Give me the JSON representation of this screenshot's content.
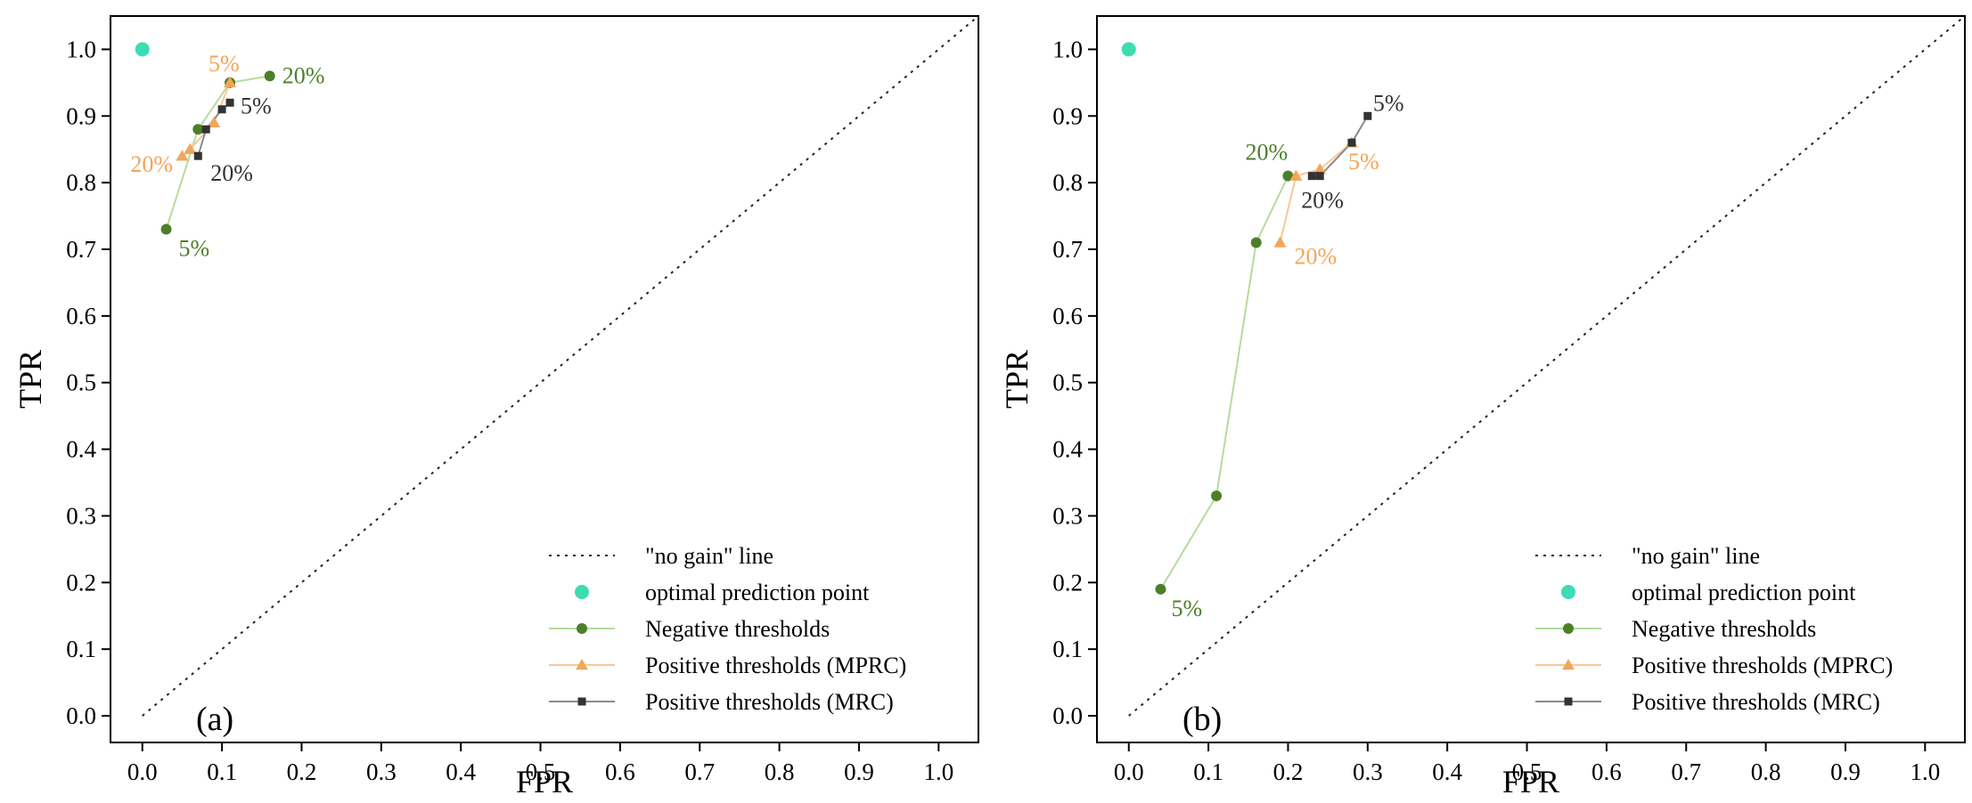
{
  "chart_data": [
    {
      "type": "line",
      "panel_label": "(a)",
      "xlabel": "FPR",
      "ylabel": "TPR",
      "xlim": [
        -0.04,
        1.05
      ],
      "ylim": [
        -0.04,
        1.05
      ],
      "xticks": [
        "0.0",
        "0.1",
        "0.2",
        "0.3",
        "0.4",
        "0.5",
        "0.6",
        "0.7",
        "0.8",
        "0.9",
        "1.0"
      ],
      "yticks": [
        "0.0",
        "0.1",
        "0.2",
        "0.3",
        "0.4",
        "0.5",
        "0.6",
        "0.7",
        "0.8",
        "0.9",
        "1.0"
      ],
      "grid": false,
      "legend_position": "bottom-right",
      "legend": [
        {
          "label": "\"no gain\" line",
          "key": "nogain"
        },
        {
          "label": "optimal prediction point",
          "key": "optimal"
        },
        {
          "label": "Negative thresholds",
          "key": "negative"
        },
        {
          "label": "Positive thresholds (MPRC)",
          "key": "mprc"
        },
        {
          "label": "Positive thresholds (MRC)",
          "key": "mrc"
        }
      ],
      "optimal_point": {
        "x": 0.0,
        "y": 1.0
      },
      "series": [
        {
          "key": "negative",
          "name": "Negative thresholds",
          "line_color": "#b5dc9c",
          "marker_color": "#4d7f2a",
          "marker": "circle",
          "x": [
            0.03,
            0.07,
            0.11,
            0.16
          ],
          "y": [
            0.73,
            0.88,
            0.95,
            0.96
          ]
        },
        {
          "key": "mprc",
          "name": "Positive thresholds (MPRC)",
          "line_color": "#f8c898",
          "marker_color": "#f2a65a",
          "marker": "triangle",
          "x": [
            0.05,
            0.06,
            0.09,
            0.11
          ],
          "y": [
            0.84,
            0.85,
            0.89,
            0.95
          ]
        },
        {
          "key": "mrc",
          "name": "Positive thresholds (MRC)",
          "line_color": "#8a8a8a",
          "marker_color": "#333333",
          "marker": "square",
          "x": [
            0.07,
            0.08,
            0.1,
            0.11
          ],
          "y": [
            0.84,
            0.88,
            0.91,
            0.92
          ]
        }
      ],
      "annotations": [
        {
          "text": "5%",
          "x": 0.03,
          "y": 0.73,
          "dx": 14,
          "dy": 30,
          "color": "#4d7f2a"
        },
        {
          "text": "20%",
          "x": 0.16,
          "y": 0.96,
          "dx": 14,
          "dy": 8,
          "color": "#4d7f2a"
        },
        {
          "text": "5%",
          "x": 0.11,
          "y": 0.95,
          "dx": -24,
          "dy": -13,
          "color": "#f2a65a"
        },
        {
          "text": "20%",
          "x": 0.05,
          "y": 0.84,
          "dx": -58,
          "dy": 18,
          "color": "#f2a65a"
        },
        {
          "text": "5%",
          "x": 0.11,
          "y": 0.92,
          "dx": 12,
          "dy": 12,
          "color": "#333333"
        },
        {
          "text": "20%",
          "x": 0.07,
          "y": 0.84,
          "dx": 14,
          "dy": 28,
          "color": "#333333"
        }
      ]
    },
    {
      "type": "line",
      "panel_label": "(b)",
      "xlabel": "FPR",
      "ylabel": "TPR",
      "xlim": [
        -0.04,
        1.05
      ],
      "ylim": [
        -0.04,
        1.05
      ],
      "xticks": [
        "0.0",
        "0.1",
        "0.2",
        "0.3",
        "0.4",
        "0.5",
        "0.6",
        "0.7",
        "0.8",
        "0.9",
        "1.0"
      ],
      "yticks": [
        "0.0",
        "0.1",
        "0.2",
        "0.3",
        "0.4",
        "0.5",
        "0.6",
        "0.7",
        "0.8",
        "0.9",
        "1.0"
      ],
      "grid": false,
      "legend_position": "bottom-right",
      "legend": [
        {
          "label": "\"no gain\" line",
          "key": "nogain"
        },
        {
          "label": "optimal prediction point",
          "key": "optimal"
        },
        {
          "label": "Negative thresholds",
          "key": "negative"
        },
        {
          "label": "Positive thresholds (MPRC)",
          "key": "mprc"
        },
        {
          "label": "Positive thresholds (MRC)",
          "key": "mrc"
        }
      ],
      "optimal_point": {
        "x": 0.0,
        "y": 1.0
      },
      "series": [
        {
          "key": "negative",
          "name": "Negative thresholds",
          "line_color": "#b5dc9c",
          "marker_color": "#4d7f2a",
          "marker": "circle",
          "x": [
            0.04,
            0.11,
            0.16,
            0.2
          ],
          "y": [
            0.19,
            0.33,
            0.71,
            0.81
          ]
        },
        {
          "key": "mprc",
          "name": "Positive thresholds (MPRC)",
          "line_color": "#f8c898",
          "marker_color": "#f2a65a",
          "marker": "triangle",
          "x": [
            0.19,
            0.21,
            0.24,
            0.28
          ],
          "y": [
            0.71,
            0.81,
            0.82,
            0.86
          ]
        },
        {
          "key": "mrc",
          "name": "Positive thresholds (MRC)",
          "line_color": "#8a8a8a",
          "marker_color": "#333333",
          "marker": "square",
          "x": [
            0.23,
            0.24,
            0.28,
            0.3
          ],
          "y": [
            0.81,
            0.81,
            0.86,
            0.9
          ]
        }
      ],
      "annotations": [
        {
          "text": "5%",
          "x": 0.04,
          "y": 0.19,
          "dx": 12,
          "dy": 30,
          "color": "#4d7f2a"
        },
        {
          "text": "20%",
          "x": 0.2,
          "y": 0.81,
          "dx": -48,
          "dy": -18,
          "color": "#4d7f2a"
        },
        {
          "text": "5%",
          "x": 0.28,
          "y": 0.86,
          "dx": -4,
          "dy": 30,
          "color": "#f2a65a"
        },
        {
          "text": "20%",
          "x": 0.19,
          "y": 0.71,
          "dx": 16,
          "dy": 24,
          "color": "#f2a65a"
        },
        {
          "text": "5%",
          "x": 0.3,
          "y": 0.9,
          "dx": 6,
          "dy": -6,
          "color": "#333333"
        },
        {
          "text": "20%",
          "x": 0.23,
          "y": 0.81,
          "dx": -12,
          "dy": 36,
          "color": "#333333"
        }
      ]
    }
  ],
  "colors": {
    "optimal": "#3ddcb2",
    "nogain": "#222222",
    "axis": "#000000"
  }
}
